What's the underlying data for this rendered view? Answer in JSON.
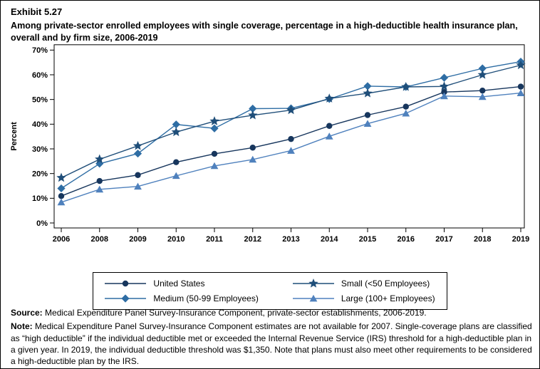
{
  "exhibit": {
    "number": "Exhibit 5.27",
    "title": "Among private-sector enrolled employees with single coverage, percentage in a high-deductible health insurance plan, overall and by firm size, 2006-2019"
  },
  "chart_data": {
    "type": "line",
    "title": "",
    "xlabel": "",
    "ylabel": "Percent",
    "ylim": [
      0,
      70
    ],
    "ytick_step": 10,
    "ytick_suffix": "%",
    "grid": false,
    "legend_position": "bottom-box",
    "categories": [
      "2006",
      "2008",
      "2009",
      "2010",
      "2011",
      "2012",
      "2013",
      "2014",
      "2015",
      "2016",
      "2017",
      "2018",
      "2019"
    ],
    "series": [
      {
        "name": "United States",
        "marker": "circle",
        "color": "#17365D",
        "values": [
          10.9,
          17.0,
          19.4,
          24.6,
          28.0,
          30.5,
          34.0,
          39.3,
          43.7,
          47.1,
          53.0,
          53.6,
          55.2
        ]
      },
      {
        "name": "Small (<50 Employees)",
        "marker": "star",
        "color": "#1F4E79",
        "values": [
          18.3,
          25.8,
          31.2,
          36.8,
          41.2,
          43.6,
          45.7,
          50.4,
          52.5,
          55.1,
          55.3,
          60.0,
          63.9
        ]
      },
      {
        "name": "Medium (50-99 Employees)",
        "marker": "diamond",
        "color": "#2E6DA4",
        "values": [
          14.0,
          24.0,
          28.1,
          39.9,
          38.3,
          46.3,
          46.4,
          50.2,
          55.4,
          55.1,
          58.8,
          62.6,
          65.3
        ]
      },
      {
        "name": "Large (100+ Employees)",
        "marker": "triangle",
        "color": "#4F81BD",
        "values": [
          8.4,
          13.6,
          14.8,
          19.1,
          23.1,
          25.7,
          29.3,
          35.1,
          40.2,
          44.4,
          51.4,
          51.1,
          52.6
        ]
      }
    ],
    "legend_order": [
      "United States",
      "Small (<50 Employees)",
      "Medium (50-99 Employees)",
      "Large (100+ Employees)"
    ]
  },
  "footer": {
    "source_label": "Source:",
    "source_text": " Medical Expenditure Panel Survey-Insurance Component, private-sector establishments, 2006-2019.",
    "note_label": "Note:",
    "note_text": " Medical Expenditure Panel Survey-Insurance Component estimates are not available for 2007. Single-coverage plans are classified as “high deductible” if the individual deductible met or exceeded the Internal Revenue Service (IRS) threshold for a high-deductible plan in a given year. In 2019, the individual deductible threshold was $1,350. Note that plans must also meet other requirements to be considered a high-deductible plan by the IRS."
  }
}
